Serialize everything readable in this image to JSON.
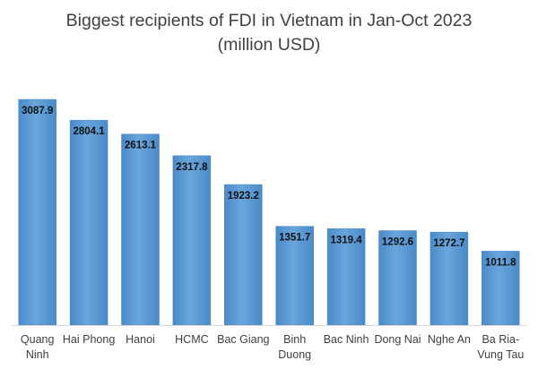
{
  "chart_data": {
    "type": "bar",
    "title": "Biggest recipients of FDI in Vietnam in Jan-Oct 2023",
    "subtitle": "(million USD)",
    "categories": [
      "Quang Ninh",
      "Hai Phong",
      "Hanoi",
      "HCMC",
      "Bac Giang",
      "Binh Duong",
      "Bac Ninh",
      "Dong Nai",
      "Nghe An",
      "Ba Ria-Vung Tau"
    ],
    "category_lines": [
      [
        "Quang",
        "Ninh"
      ],
      [
        "Hai Phong"
      ],
      [
        "Hanoi"
      ],
      [
        "HCMC"
      ],
      [
        "Bac Giang"
      ],
      [
        "Binh",
        "Duong"
      ],
      [
        "Bac Ninh"
      ],
      [
        "Dong Nai"
      ],
      [
        "Nghe An"
      ],
      [
        "Ba Ria-",
        "Vung Tau"
      ]
    ],
    "values": [
      3087.9,
      2804.1,
      2613.1,
      2317.8,
      1923.2,
      1351.7,
      1319.4,
      1292.6,
      1272.7,
      1011.8
    ],
    "value_labels": [
      "3087.9",
      "2804.1",
      "2613.1",
      "2317.8",
      "1923.2",
      "1351.7",
      "1319.4",
      "1292.6",
      "1272.7",
      "1011.8"
    ],
    "xlabel": "",
    "ylabel": "",
    "ylim": [
      0,
      3300
    ],
    "grid": false,
    "legend": "none",
    "bar_color": "#5B9BD5"
  }
}
